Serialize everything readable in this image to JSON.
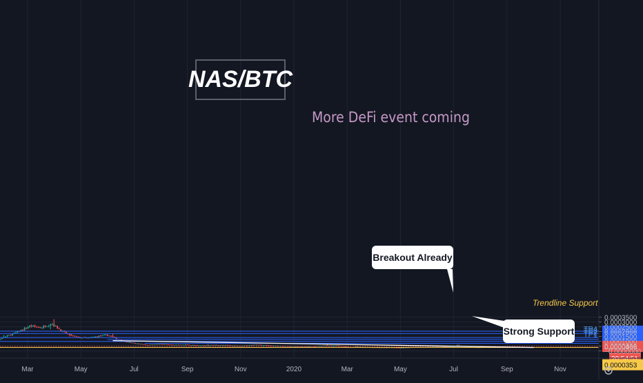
{
  "title": "NAS/BTC",
  "subtitle": "More DeFi event coming",
  "annotations": {
    "breakout": "Breakout Already",
    "support": "Strong Support",
    "trendline_support": "Trendline Support"
  },
  "colors": {
    "background": "#131722",
    "grid": "#1f2433",
    "up": "#26a69a",
    "down": "#ef5350",
    "level_line": "#2962ff",
    "support_line": "#f7c948",
    "dotted_line": "#ef5350",
    "trendline": "#ffffff",
    "axis_text": "#b2b5be",
    "subtitle": "#c598c6",
    "tp_label": "#4c8fe6"
  },
  "chart_data": {
    "type": "candlestick",
    "title": "NAS/BTC",
    "y_axis": {
      "min": -5e-06,
      "max": 0.000357,
      "ticks": [
        0.00035,
        0.0003,
        0.00025,
        0.0002,
        0.00015,
        0.0001,
        5e-05,
        0.0
      ],
      "tick_labels": [
        "0.0003500",
        "0.0003000",
        "0.0002500",
        "0.0002000",
        "0.0001500",
        "0.0001000",
        "0.0000500",
        "−0.0000000"
      ],
      "side": "right"
    },
    "x_axis": {
      "tick_labels": [
        "Mar",
        "May",
        "Jul",
        "Sep",
        "Nov",
        "2020",
        "Mar",
        "May",
        "Jul",
        "Sep",
        "Nov"
      ],
      "tick_months": [
        2,
        4,
        6,
        8,
        10,
        12,
        14,
        16,
        18,
        20,
        22
      ],
      "month_range": [
        0.0,
        24.0
      ]
    },
    "horizontal_levels": [
      {
        "value": 0.0002047,
        "label": "0.0002047",
        "name": ""
      },
      {
        "value": 0.0001795,
        "label": "0.0001795",
        "name": ""
      },
      {
        "value": 0.0001365,
        "label": "0.0001365",
        "name": "TP4"
      },
      {
        "value": 0.0001175,
        "label": "0.0001175",
        "name": "TP3"
      },
      {
        "value": 9.79e-05,
        "label": "0.0000979",
        "name": "TP2"
      },
      {
        "value": 7.88e-05,
        "label": "0.0000788",
        "name": "TP1"
      }
    ],
    "dotted_level": {
      "value": 4.66e-05,
      "label": "0.0000466"
    },
    "support_level": {
      "value": 3.53e-05,
      "label": "0.0000353"
    },
    "countdown_label": "20:54:51",
    "trendline": {
      "start": [
        5.2,
        0.0001065
      ],
      "end": [
        21.0,
        3.53e-05
      ]
    },
    "price_path": [
      [
        0.0,
        0.000115
      ],
      [
        0.5,
        0.000112
      ],
      [
        0.9,
        0.000117
      ],
      [
        1.3,
        0.000162
      ],
      [
        1.7,
        0.000205
      ],
      [
        2.1,
        0.00026
      ],
      [
        2.5,
        0.00024
      ],
      [
        2.9,
        0.000285
      ],
      [
        3.3,
        0.0002
      ],
      [
        3.6,
        0.000163
      ],
      [
        3.9,
        0.000138
      ],
      [
        4.3,
        0.000133
      ],
      [
        4.7,
        0.000155
      ],
      [
        5.0,
        0.000165
      ],
      [
        5.3,
        0.00013
      ],
      [
        5.6,
        0.000102
      ],
      [
        6.0,
        7.85e-05
      ],
      [
        6.5,
        6.35e-05
      ],
      [
        7.0,
        7e-05
      ],
      [
        7.5,
        6.2e-05
      ],
      [
        8.0,
        6.4e-05
      ],
      [
        8.4,
        5.55e-05
      ],
      [
        9.0,
        6.05e-05
      ],
      [
        9.5,
        5.7e-05
      ],
      [
        10.0,
        5.25e-05
      ],
      [
        10.5,
        6.25e-05
      ],
      [
        11.0,
        5.8e-05
      ],
      [
        11.5,
        4.95e-05
      ],
      [
        12.0,
        4.55e-05
      ],
      [
        12.5,
        4.45e-05
      ],
      [
        13.0,
        5.25e-05
      ],
      [
        13.5,
        5.75e-05
      ],
      [
        14.0,
        3.95e-05
      ],
      [
        14.5,
        4.15e-05
      ],
      [
        15.0,
        3.7e-05
      ],
      [
        15.5,
        3.55e-05
      ],
      [
        16.0,
        3.2e-05
      ],
      [
        16.5,
        3.85e-05
      ],
      [
        17.0,
        3.95e-05
      ],
      [
        17.5,
        4.25e-05
      ],
      [
        17.9,
        4.75e-05
      ],
      [
        18.2,
        5.35e-05
      ],
      [
        18.5,
        4.8e-05
      ],
      [
        18.8,
        3.7e-05
      ],
      [
        19.3,
        3.85e-05
      ]
    ]
  }
}
